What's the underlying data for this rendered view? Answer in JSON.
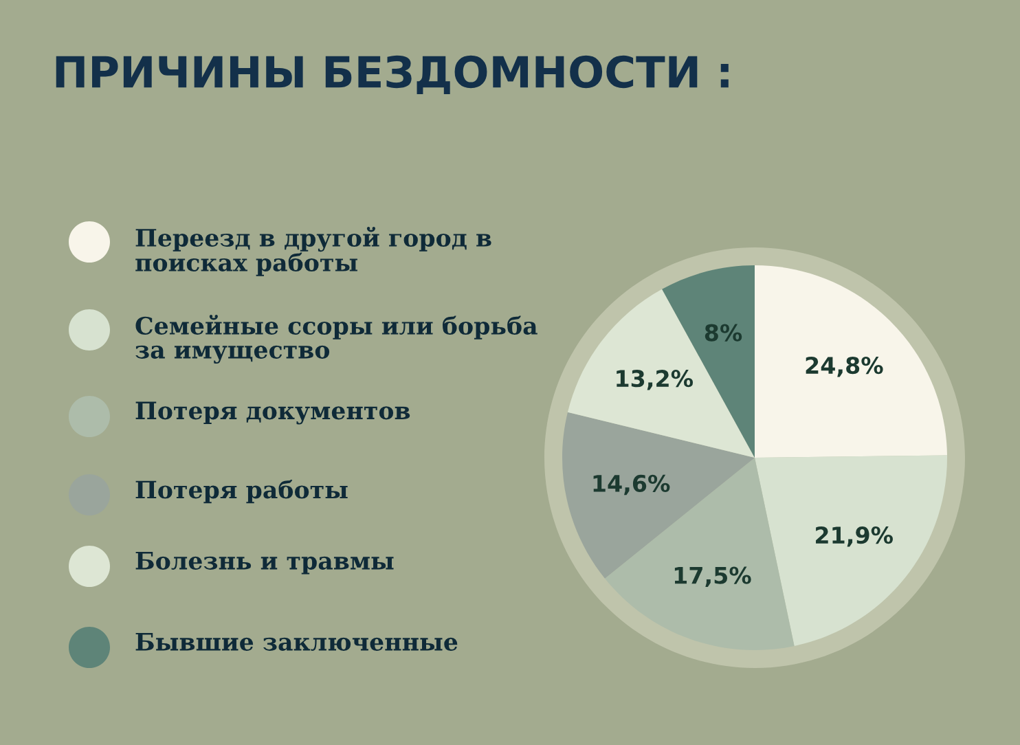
{
  "chart_data": {
    "type": "pie",
    "title": "ПРИЧИНЫ БЕЗДОМНОСТИ :",
    "categories": [
      "Переезд в другой город в поисках работы",
      "Семейные ссоры или борьба за имущество",
      "Потеря документов",
      "Потеря работы",
      "Болезнь и травмы",
      "Бывшие заключенные"
    ],
    "values": [
      24.8,
      21.9,
      17.5,
      14.6,
      13.2,
      8
    ],
    "colors": [
      "#f8f5ea",
      "#d7e2d0",
      "#adbcaa",
      "#9aa59c",
      "#dde6d4",
      "#5e8478"
    ],
    "value_labels": [
      "24,8%",
      "21,9%",
      "17,5%",
      "14,6%",
      "13,2%",
      "8%"
    ],
    "legend": "left"
  }
}
